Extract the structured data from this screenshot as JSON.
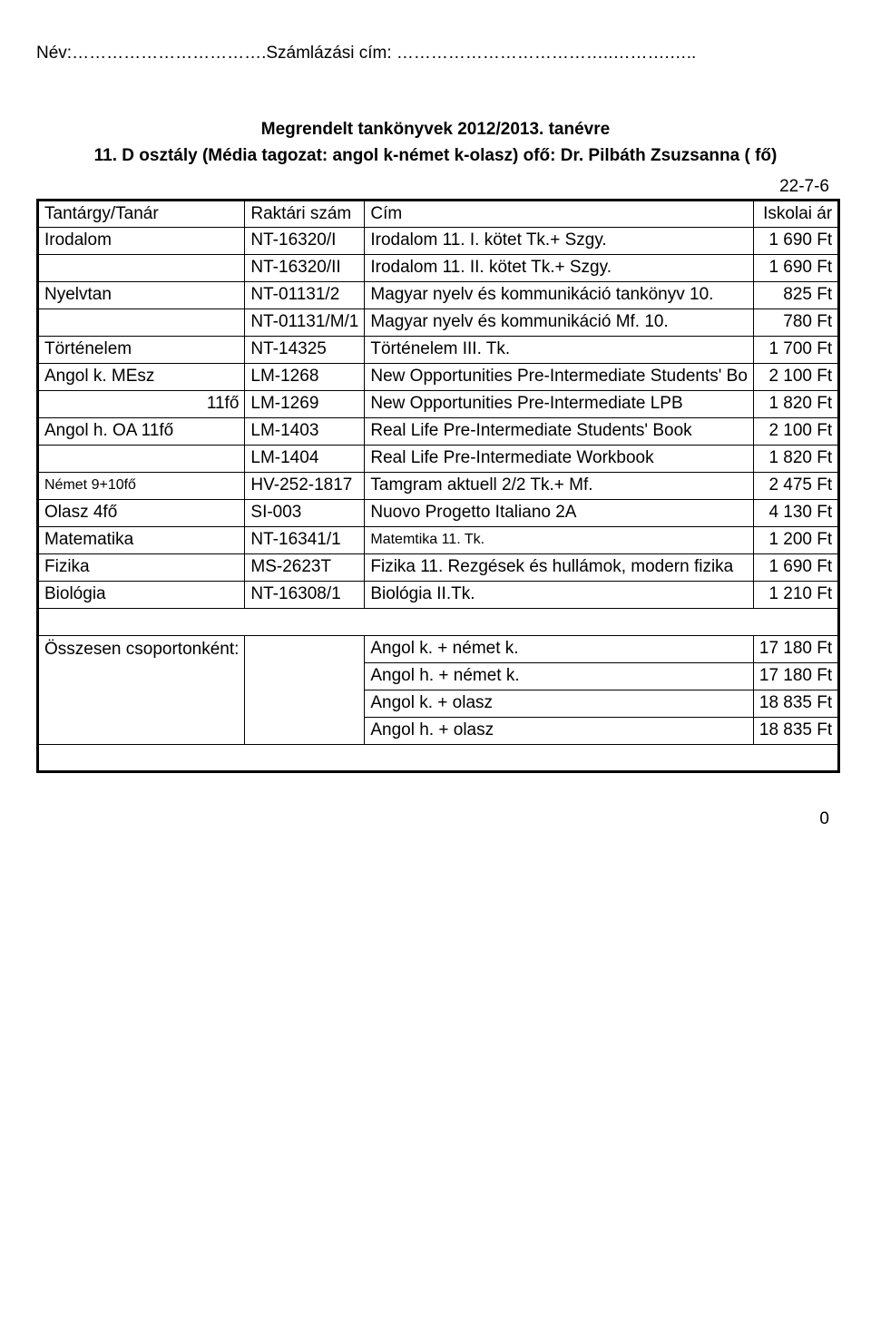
{
  "header_line": "Név:…………………………….Számlázási cím: ………………………………..……….…..",
  "titles": {
    "l1": "Megrendelt tankönyvek 2012/2013. tanévre",
    "l2": "11. D osztály (Média tagozat: angol k-német k-olasz) ofő: Dr. Pilbáth Zsuzsanna ( fő)"
  },
  "code": "22-7-6",
  "thead": {
    "c1": "Tantárgy/Tanár",
    "c2": "Raktári szám",
    "c3": "Cím",
    "c4": "Iskolai ár"
  },
  "rows": [
    {
      "c1": "Irodalom",
      "c2": "NT-16320/I",
      "c3": "Irodalom 11. I. kötet Tk.+ Szgy.",
      "c4": "1 690 Ft"
    },
    {
      "c1": "",
      "c2": "NT-16320/II",
      "c3": "Irodalom 11. II. kötet Tk.+ Szgy.",
      "c4": "1 690 Ft"
    },
    {
      "c1": "Nyelvtan",
      "c2": "NT-01131/2",
      "c3": "Magyar nyelv és kommunikáció tankönyv 10.",
      "c4": "825 Ft"
    },
    {
      "c1": "",
      "c2": "NT-01131/M/1",
      "c3": "Magyar nyelv és kommunikáció Mf. 10.",
      "c4": "780 Ft"
    },
    {
      "c1": "Történelem",
      "c2": "NT-14325",
      "c3": "Történelem III. Tk.",
      "c4": "1 700 Ft"
    },
    {
      "c1": "Angol k. MEsz",
      "c2": "LM-1268",
      "c3": "New Opportunities Pre-Intermediate Students' Bo",
      "c4": "2 100 Ft"
    },
    {
      "c1": "11fő",
      "c1_align": "right",
      "c2": "LM-1269",
      "c3": "New Opportunities Pre-Intermediate LPB",
      "c4": "1 820 Ft"
    },
    {
      "c1": "Angol h. OA 11fő",
      "c2": "LM-1403",
      "c3": "Real Life Pre-Intermediate Students' Book",
      "c4": "2 100 Ft"
    },
    {
      "c1": "",
      "c2": "LM-1404",
      "c3": "Real Life Pre-Intermediate Workbook",
      "c4": "1 820 Ft"
    },
    {
      "c1": "Német  9+10fő",
      "c1_small": true,
      "c2": "HV-252-1817",
      "c3": "Tamgram aktuell 2/2 Tk.+ Mf.",
      "c4": "2 475 Ft"
    },
    {
      "c1": "Olasz        4fő",
      "c2": "SI-003",
      "c3": "Nuovo Progetto Italiano 2A",
      "c4": "4 130 Ft"
    },
    {
      "c1": "Matematika",
      "c2": "NT-16341/1",
      "c3": "Matemtika 11. Tk.",
      "c3_small": true,
      "c4": "1 200 Ft"
    },
    {
      "c1": "Fizika",
      "c2": "MS-2623T",
      "c3": "Fizika 11. Rezgések és hullámok, modern fizika",
      "c4": "1 690 Ft"
    },
    {
      "c1": "Biológia",
      "c2": "NT-16308/1",
      "c3": "Biológia II.Tk.",
      "c4": "1 210 Ft"
    }
  ],
  "summary_label": "Összesen csoportonként:",
  "summary": [
    {
      "c3": "Angol k. + német k.",
      "c4": "17 180 Ft"
    },
    {
      "c3": "Angol h. + német k.",
      "c4": "17 180 Ft"
    },
    {
      "c3": "Angol k. + olasz",
      "c4": "18 835 Ft"
    },
    {
      "c3": "Angol h. + olasz",
      "c4": "18 835 Ft"
    }
  ],
  "footer_zero": "0"
}
